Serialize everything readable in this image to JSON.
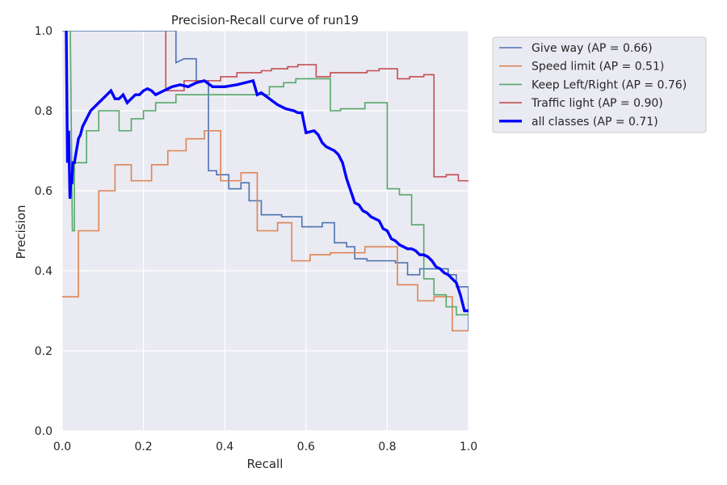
{
  "chart_data": {
    "type": "line",
    "title": "Precision-Recall curve of run19",
    "xlabel": "Recall",
    "ylabel": "Precision",
    "xlim": [
      0,
      1
    ],
    "ylim": [
      0,
      1
    ],
    "xticks": [
      "0.0",
      "0.2",
      "0.4",
      "0.6",
      "0.8",
      "1.0"
    ],
    "yticks": [
      "0.0",
      "0.2",
      "0.4",
      "0.6",
      "0.8",
      "1.0"
    ],
    "grid": true,
    "legend_position": "outside-top-right",
    "series": [
      {
        "name": "Give way (AP = 0.66)",
        "color": "#4c72b0",
        "x": [
          0.0,
          0.01,
          0.02,
          0.03,
          0.28,
          0.28,
          0.3,
          0.33,
          0.33,
          0.36,
          0.36,
          0.38,
          0.38,
          0.41,
          0.41,
          0.44,
          0.44,
          0.46,
          0.46,
          0.49,
          0.49,
          0.54,
          0.54,
          0.59,
          0.59,
          0.64,
          0.64,
          0.67,
          0.67,
          0.7,
          0.7,
          0.72,
          0.72,
          0.75,
          0.75,
          0.82,
          0.82,
          0.85,
          0.85,
          0.88,
          0.88,
          0.95,
          0.95,
          0.97,
          0.97,
          1.0,
          1.0
        ],
        "y": [
          1.0,
          1.0,
          1.0,
          1.0,
          1.0,
          0.92,
          0.93,
          0.93,
          0.875,
          0.875,
          0.65,
          0.65,
          0.64,
          0.64,
          0.605,
          0.605,
          0.62,
          0.62,
          0.575,
          0.575,
          0.54,
          0.54,
          0.535,
          0.535,
          0.51,
          0.51,
          0.52,
          0.52,
          0.47,
          0.47,
          0.46,
          0.46,
          0.43,
          0.43,
          0.425,
          0.425,
          0.42,
          0.42,
          0.39,
          0.39,
          0.405,
          0.405,
          0.39,
          0.39,
          0.36,
          0.36,
          0.25
        ]
      },
      {
        "name": "Speed limit (AP = 0.51)",
        "color": "#dd8452",
        "x": [
          0.0,
          0.04,
          0.04,
          0.09,
          0.09,
          0.13,
          0.13,
          0.17,
          0.17,
          0.22,
          0.22,
          0.26,
          0.26,
          0.305,
          0.305,
          0.35,
          0.35,
          0.39,
          0.39,
          0.44,
          0.44,
          0.48,
          0.48,
          0.53,
          0.53,
          0.565,
          0.565,
          0.61,
          0.61,
          0.66,
          0.66,
          0.745,
          0.745,
          0.825,
          0.825,
          0.875,
          0.875,
          0.915,
          0.915,
          0.96,
          0.96,
          1.0,
          1.0
        ],
        "y": [
          0.335,
          0.335,
          0.5,
          0.5,
          0.6,
          0.6,
          0.665,
          0.665,
          0.625,
          0.625,
          0.665,
          0.665,
          0.7,
          0.7,
          0.73,
          0.73,
          0.75,
          0.75,
          0.625,
          0.625,
          0.645,
          0.645,
          0.5,
          0.5,
          0.52,
          0.52,
          0.425,
          0.425,
          0.44,
          0.44,
          0.445,
          0.445,
          0.46,
          0.46,
          0.365,
          0.365,
          0.325,
          0.325,
          0.335,
          0.335,
          0.25,
          0.25,
          0.25
        ]
      },
      {
        "name": "Keep Left/Right (AP = 0.76)",
        "color": "#55a868",
        "x": [
          0.0,
          0.01,
          0.02,
          0.025,
          0.03,
          0.03,
          0.06,
          0.06,
          0.09,
          0.09,
          0.14,
          0.14,
          0.17,
          0.17,
          0.2,
          0.2,
          0.23,
          0.23,
          0.28,
          0.28,
          0.51,
          0.51,
          0.545,
          0.545,
          0.575,
          0.575,
          0.66,
          0.66,
          0.685,
          0.685,
          0.745,
          0.745,
          0.8,
          0.8,
          0.83,
          0.83,
          0.86,
          0.86,
          0.89,
          0.89,
          0.915,
          0.915,
          0.945,
          0.945,
          0.97,
          0.97,
          1.0
        ],
        "y": [
          1.0,
          1.0,
          1.0,
          0.5,
          0.5,
          0.67,
          0.67,
          0.75,
          0.75,
          0.8,
          0.8,
          0.75,
          0.75,
          0.78,
          0.78,
          0.8,
          0.8,
          0.82,
          0.82,
          0.84,
          0.84,
          0.86,
          0.86,
          0.87,
          0.87,
          0.88,
          0.88,
          0.8,
          0.8,
          0.805,
          0.805,
          0.82,
          0.82,
          0.605,
          0.605,
          0.59,
          0.59,
          0.515,
          0.515,
          0.38,
          0.38,
          0.34,
          0.34,
          0.31,
          0.31,
          0.29,
          0.29
        ]
      },
      {
        "name": "Traffic light (AP = 0.90)",
        "color": "#c44e52",
        "x": [
          0.255,
          0.255,
          0.3,
          0.3,
          0.39,
          0.39,
          0.43,
          0.43,
          0.49,
          0.49,
          0.515,
          0.515,
          0.555,
          0.555,
          0.58,
          0.58,
          0.625,
          0.625,
          0.66,
          0.66,
          0.75,
          0.75,
          0.78,
          0.78,
          0.825,
          0.825,
          0.855,
          0.855,
          0.89,
          0.89,
          0.915,
          0.915,
          0.945,
          0.945,
          0.975,
          0.975,
          1.0
        ],
        "y": [
          1.0,
          0.85,
          0.85,
          0.875,
          0.875,
          0.885,
          0.885,
          0.895,
          0.895,
          0.9,
          0.9,
          0.905,
          0.905,
          0.91,
          0.91,
          0.915,
          0.915,
          0.885,
          0.885,
          0.895,
          0.895,
          0.9,
          0.9,
          0.905,
          0.905,
          0.88,
          0.88,
          0.885,
          0.885,
          0.89,
          0.89,
          0.635,
          0.635,
          0.64,
          0.64,
          0.625,
          0.625
        ]
      },
      {
        "name": "all classes (AP = 0.71)",
        "color": "#0000ff",
        "bold": true,
        "x": [
          0.01,
          0.013,
          0.016,
          0.019,
          0.021,
          0.024,
          0.026,
          0.03,
          0.035,
          0.04,
          0.045,
          0.05,
          0.06,
          0.07,
          0.08,
          0.09,
          0.1,
          0.11,
          0.12,
          0.13,
          0.14,
          0.15,
          0.16,
          0.17,
          0.18,
          0.19,
          0.2,
          0.21,
          0.22,
          0.23,
          0.25,
          0.27,
          0.29,
          0.31,
          0.33,
          0.35,
          0.37,
          0.4,
          0.43,
          0.47,
          0.48,
          0.49,
          0.51,
          0.53,
          0.55,
          0.57,
          0.58,
          0.59,
          0.6,
          0.62,
          0.63,
          0.64,
          0.65,
          0.66,
          0.67,
          0.68,
          0.69,
          0.7,
          0.71,
          0.72,
          0.73,
          0.74,
          0.75,
          0.76,
          0.77,
          0.78,
          0.79,
          0.8,
          0.81,
          0.82,
          0.83,
          0.84,
          0.85,
          0.86,
          0.87,
          0.88,
          0.89,
          0.9,
          0.91,
          0.92,
          0.93,
          0.94,
          0.95,
          0.96,
          0.97,
          0.98,
          0.99,
          1.0
        ],
        "y": [
          1.0,
          0.67,
          0.75,
          0.58,
          0.62,
          0.62,
          0.67,
          0.67,
          0.7,
          0.73,
          0.74,
          0.76,
          0.78,
          0.8,
          0.81,
          0.82,
          0.83,
          0.84,
          0.85,
          0.83,
          0.83,
          0.84,
          0.82,
          0.83,
          0.84,
          0.84,
          0.85,
          0.855,
          0.85,
          0.84,
          0.85,
          0.86,
          0.865,
          0.86,
          0.87,
          0.875,
          0.86,
          0.86,
          0.865,
          0.875,
          0.84,
          0.845,
          0.83,
          0.815,
          0.805,
          0.8,
          0.795,
          0.795,
          0.745,
          0.75,
          0.74,
          0.72,
          0.71,
          0.705,
          0.7,
          0.69,
          0.67,
          0.63,
          0.6,
          0.57,
          0.565,
          0.55,
          0.545,
          0.535,
          0.53,
          0.525,
          0.505,
          0.5,
          0.48,
          0.475,
          0.465,
          0.46,
          0.455,
          0.455,
          0.45,
          0.44,
          0.44,
          0.435,
          0.425,
          0.41,
          0.405,
          0.395,
          0.39,
          0.38,
          0.37,
          0.34,
          0.3,
          0.3
        ]
      }
    ]
  }
}
